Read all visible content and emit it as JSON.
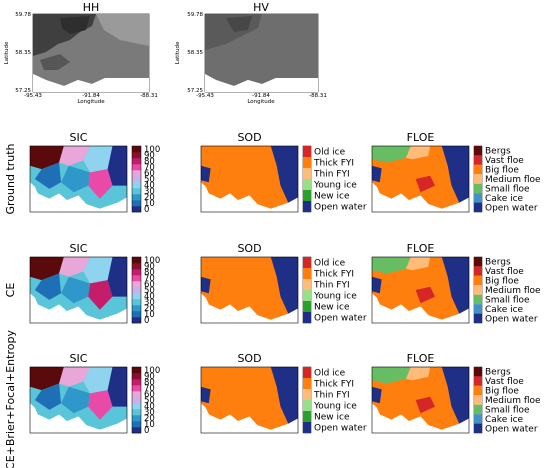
{
  "chart_data": {
    "type": "heatmap",
    "sar": [
      {
        "title": "HH",
        "tone": "#7a7a7a"
      },
      {
        "title": "HV",
        "tone": "#6e6e6e"
      }
    ],
    "sar_axes": {
      "xlabel": "Longitude",
      "ylabel": "Latitude",
      "xticks": [
        "-95.43",
        "-91.84",
        "-88.31"
      ],
      "yticks": [
        "59.78",
        "58.35",
        "57.25"
      ]
    },
    "columns": [
      "SIC",
      "SOD",
      "FLOE"
    ],
    "rows": [
      "Ground truth",
      "CE",
      "CE+Brier+Focal+Entropy"
    ],
    "sic_colorbar": {
      "ticks": [
        0,
        10,
        20,
        30,
        40,
        50,
        60,
        70,
        80,
        90,
        100
      ],
      "colors": [
        "#1f2f86",
        "#1e6fb5",
        "#2f97c9",
        "#5ac4d8",
        "#8fd3ee",
        "#c9b0e6",
        "#e9a6d8",
        "#e94aa8",
        "#c41d6a",
        "#8a1030",
        "#5a0a0a"
      ]
    },
    "sod_legend": {
      "labels": [
        "Old ice",
        "Thick FYI",
        "Thin FYI",
        "Young ice",
        "New ice",
        "Open water"
      ],
      "colors": [
        "#d62728",
        "#ff7f0e",
        "#ffbb78",
        "#98df8a",
        "#2ca02c",
        "#1f2f86"
      ]
    },
    "floe_legend": {
      "labels": [
        "Bergs",
        "Vast floe",
        "Big floe",
        "Medium floe",
        "Small floe",
        "Cake ice",
        "Open water"
      ],
      "colors": [
        "#5a0a0a",
        "#d62728",
        "#ff7f0e",
        "#ffbb78",
        "#66bd63",
        "#4292c6",
        "#1f2f86"
      ]
    }
  }
}
